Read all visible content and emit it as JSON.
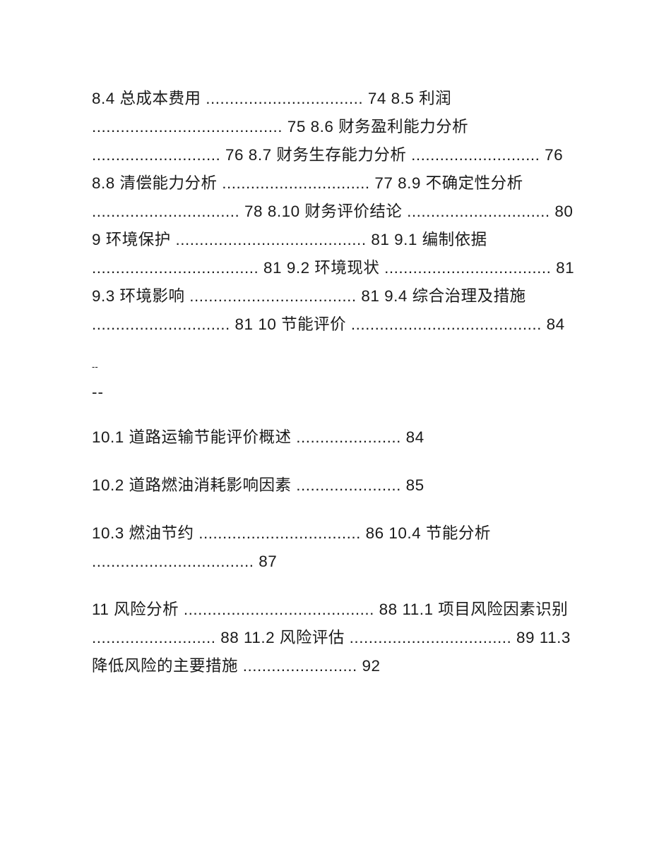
{
  "block1": {
    "content": "8.4 总成本费用 ................................. 74  8.5 利润 ........................................ 75  8.6 财务盈利能力分析 ........................... 76  8.7 财务生存能力分析 ........................... 76  8.8 清偿能力分析 ............................... 77  8.9 不确定性分析 ............................... 78  8.10 财务评价结论 .............................. 80  9 环境保护 ........................................ 81  9.1 编制依据 ................................... 81  9.2 环境现状 ................................... 81  9.3 环境影响 ................................... 81  9.4 综合治理及措施 ............................. 81  10 节能评价 ........................................ 84"
  },
  "separator1": "--",
  "separator2": "--",
  "block2": {
    "content": "10.1 道路运输节能评价概述 ...................... 84"
  },
  "block3": {
    "content": "10.2 道路燃油消耗影响因素 ...................... 85"
  },
  "block4": {
    "content": "10.3 燃油节约 .................................. 86  10.4 节能分析 .................................. 87"
  },
  "block5": {
    "content": "11 风险分析 ........................................ 88  11.1 项目风险因素识别 .......................... 88  11.2 风险评估 .................................. 89  11.3 降低风险的主要措施 ........................ 92"
  }
}
